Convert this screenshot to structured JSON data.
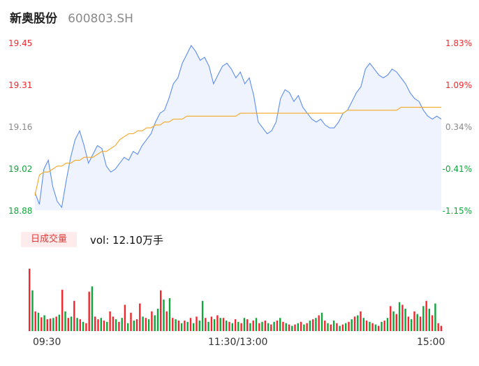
{
  "header": {
    "name": "新奥股份",
    "code": "600803.SH"
  },
  "colors": {
    "up": "#f0282d",
    "down": "#12a53b",
    "neutral": "#8a8a8a",
    "price_line": "#5b8def",
    "avg_line": "#f5a623",
    "area_fill": "#eef3fd"
  },
  "volume": {
    "badge_label": "日成交量",
    "text": "vol: 12.10万手"
  },
  "chart_data": [
    {
      "type": "line",
      "title": "新奥股份 600803.SH",
      "y_ticks": [
        "19.45",
        "19.31",
        "19.16",
        "19.02",
        "18.88"
      ],
      "y_right_ticks": [
        "1.83%",
        "1.09%",
        "0.34%",
        "-0.41%",
        "-1.15%"
      ],
      "y_tick_colors": [
        "up",
        "up",
        "neutral",
        "down",
        "down"
      ],
      "ylim": [
        18.88,
        19.45
      ],
      "prev_close": 19.095,
      "x_ticks": [
        "09:30",
        "11:30/13:00",
        "15:00"
      ],
      "series": [
        {
          "key": "price",
          "values": [
            18.94,
            18.9,
            19.02,
            19.05,
            18.96,
            18.91,
            18.89,
            18.98,
            19.06,
            19.12,
            19.15,
            19.1,
            19.04,
            19.07,
            19.1,
            19.09,
            19.03,
            19.01,
            19.02,
            19.04,
            19.06,
            19.05,
            19.08,
            19.07,
            19.1,
            19.12,
            19.14,
            19.18,
            19.21,
            19.22,
            19.26,
            19.31,
            19.33,
            19.38,
            19.41,
            19.44,
            19.42,
            19.39,
            19.4,
            19.37,
            19.31,
            19.34,
            19.37,
            19.38,
            19.36,
            19.33,
            19.35,
            19.31,
            19.33,
            19.27,
            19.18,
            19.16,
            19.14,
            19.15,
            19.18,
            19.26,
            19.29,
            19.28,
            19.25,
            19.27,
            19.23,
            19.21,
            19.19,
            19.18,
            19.19,
            19.17,
            19.16,
            19.16,
            19.18,
            19.21,
            19.22,
            19.25,
            19.28,
            19.3,
            19.36,
            19.38,
            19.36,
            19.34,
            19.33,
            19.34,
            19.36,
            19.35,
            19.33,
            19.31,
            19.28,
            19.26,
            19.25,
            19.22,
            19.2,
            19.19,
            19.2,
            19.19
          ]
        },
        {
          "key": "average",
          "values": [
            18.93,
            19.0,
            19.01,
            19.01,
            19.02,
            19.03,
            19.03,
            19.04,
            19.04,
            19.05,
            19.05,
            19.06,
            19.06,
            19.06,
            19.07,
            19.08,
            19.08,
            19.09,
            19.1,
            19.12,
            19.13,
            19.14,
            19.14,
            19.15,
            19.15,
            19.16,
            19.16,
            19.17,
            19.17,
            19.18,
            19.18,
            19.19,
            19.19,
            19.19,
            19.2,
            19.2,
            19.2,
            19.2,
            19.2,
            19.2,
            19.2,
            19.2,
            19.2,
            19.2,
            19.2,
            19.2,
            19.21,
            19.21,
            19.21,
            19.21,
            19.21,
            19.21,
            19.21,
            19.21,
            19.21,
            19.21,
            19.21,
            19.21,
            19.21,
            19.21,
            19.21,
            19.21,
            19.21,
            19.21,
            19.21,
            19.21,
            19.21,
            19.21,
            19.21,
            19.21,
            19.22,
            19.22,
            19.22,
            19.22,
            19.22,
            19.22,
            19.22,
            19.22,
            19.22,
            19.22,
            19.22,
            19.22,
            19.23,
            19.23,
            19.23,
            19.23,
            19.23,
            19.23,
            19.23,
            19.23,
            19.23,
            19.23
          ]
        }
      ]
    },
    {
      "type": "bar",
      "title": "日成交量",
      "x_ticks": [
        "09:30",
        "11:30/13:00",
        "15:00"
      ],
      "values": [
        0.95,
        0.62,
        0.3,
        0.28,
        0.21,
        0.24,
        0.18,
        0.19,
        0.2,
        0.22,
        0.25,
        0.63,
        0.3,
        0.2,
        0.22,
        0.46,
        0.2,
        0.18,
        0.14,
        0.12,
        0.6,
        0.68,
        0.22,
        0.18,
        0.2,
        0.16,
        0.14,
        0.3,
        0.22,
        0.18,
        0.14,
        0.2,
        0.4,
        0.12,
        0.28,
        0.16,
        0.18,
        0.42,
        0.22,
        0.2,
        0.18,
        0.3,
        0.24,
        0.34,
        0.62,
        0.48,
        0.3,
        0.5,
        0.2,
        0.18,
        0.16,
        0.12,
        0.16,
        0.14,
        0.2,
        0.12,
        0.22,
        0.16,
        0.46,
        0.2,
        0.14,
        0.22,
        0.18,
        0.24,
        0.2,
        0.2,
        0.16,
        0.14,
        0.12,
        0.18,
        0.14,
        0.12,
        0.2,
        0.18,
        0.12,
        0.16,
        0.2,
        0.12,
        0.14,
        0.16,
        0.12,
        0.1,
        0.14,
        0.16,
        0.2,
        0.14,
        0.12,
        0.1,
        0.08,
        0.1,
        0.12,
        0.14,
        0.1,
        0.12,
        0.16,
        0.18,
        0.2,
        0.24,
        0.28,
        0.16,
        0.12,
        0.1,
        0.16,
        0.12,
        0.08,
        0.1,
        0.12,
        0.14,
        0.18,
        0.22,
        0.24,
        0.3,
        0.2,
        0.16,
        0.14,
        0.12,
        0.1,
        0.08,
        0.14,
        0.16,
        0.2,
        0.38,
        0.3,
        0.26,
        0.44,
        0.4,
        0.34,
        0.22,
        0.18,
        0.3,
        0.26,
        0.22,
        0.38,
        0.46,
        0.34,
        0.24,
        0.42,
        0.12,
        0.08
      ],
      "colors": [
        "up",
        "down",
        "up",
        "down",
        "up",
        "down",
        "up",
        "up",
        "down",
        "up",
        "down",
        "up",
        "down",
        "up",
        "down",
        "up",
        "down",
        "up",
        "down",
        "up",
        "up",
        "down",
        "up",
        "up",
        "down",
        "up",
        "down",
        "up",
        "up",
        "down",
        "up",
        "down",
        "up",
        "down",
        "up",
        "down",
        "up",
        "up",
        "down",
        "up",
        "down",
        "up",
        "down",
        "down",
        "up",
        "down",
        "up",
        "down",
        "up",
        "down",
        "up",
        "down",
        "up",
        "down",
        "up",
        "down",
        "up",
        "down",
        "down",
        "up",
        "down",
        "up",
        "down",
        "up",
        "down",
        "up",
        "down",
        "up",
        "down",
        "up",
        "down",
        "up",
        "down",
        "up",
        "down",
        "up",
        "down",
        "up",
        "down",
        "up",
        "down",
        "up",
        "down",
        "up",
        "down",
        "up",
        "down",
        "up",
        "down",
        "up",
        "down",
        "up",
        "down",
        "up",
        "down",
        "up",
        "down",
        "up",
        "down",
        "up",
        "down",
        "up",
        "down",
        "up",
        "down",
        "up",
        "down",
        "up",
        "down",
        "up",
        "down",
        "up",
        "down",
        "up",
        "down",
        "up",
        "down",
        "up",
        "down",
        "up",
        "down",
        "up",
        "down",
        "up",
        "down",
        "up",
        "down",
        "up",
        "down",
        "up",
        "down",
        "up",
        "down",
        "up",
        "down",
        "up",
        "down"
      ],
      "ylim": [
        0,
        1
      ]
    }
  ]
}
